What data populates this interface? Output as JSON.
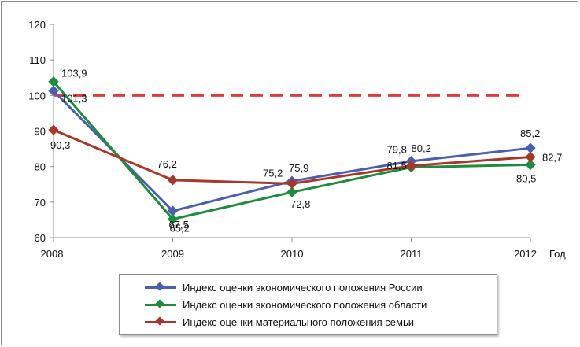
{
  "chart_data": {
    "type": "line",
    "xlabel": "Год",
    "ylabel": "",
    "title": "",
    "categories": [
      "2008",
      "2009",
      "2010",
      "2011",
      "2012"
    ],
    "ylim": [
      60,
      120
    ],
    "yticks": [
      60,
      70,
      80,
      90,
      100,
      110,
      120
    ],
    "grid": false,
    "legend_position": "bottom",
    "reference_line": {
      "y": 100,
      "style": "dashed",
      "color": "#e23a3a"
    },
    "series": [
      {
        "name": "Индекс оценки экономического положения  России",
        "color": "#4a5fb0",
        "values": [
          101.3,
          67.5,
          75.9,
          81.5,
          85.2
        ],
        "labels": [
          "101,3",
          "67,5",
          "75,9",
          "81,5",
          "85,2"
        ]
      },
      {
        "name": "Индекс оценки экономического положения области",
        "color": "#1e8c3c",
        "values": [
          103.9,
          65.2,
          72.8,
          79.8,
          80.5
        ],
        "labels": [
          "103,9",
          "65,2",
          "72,8",
          "79,8",
          "80,5"
        ]
      },
      {
        "name": "Индекс оценки материального положения семьи",
        "color": "#a9362a",
        "values": [
          90.3,
          76.2,
          75.2,
          80.2,
          82.7
        ],
        "labels": [
          "90,3",
          "76,2",
          "75,2",
          "80,2",
          "82,7"
        ]
      }
    ]
  }
}
